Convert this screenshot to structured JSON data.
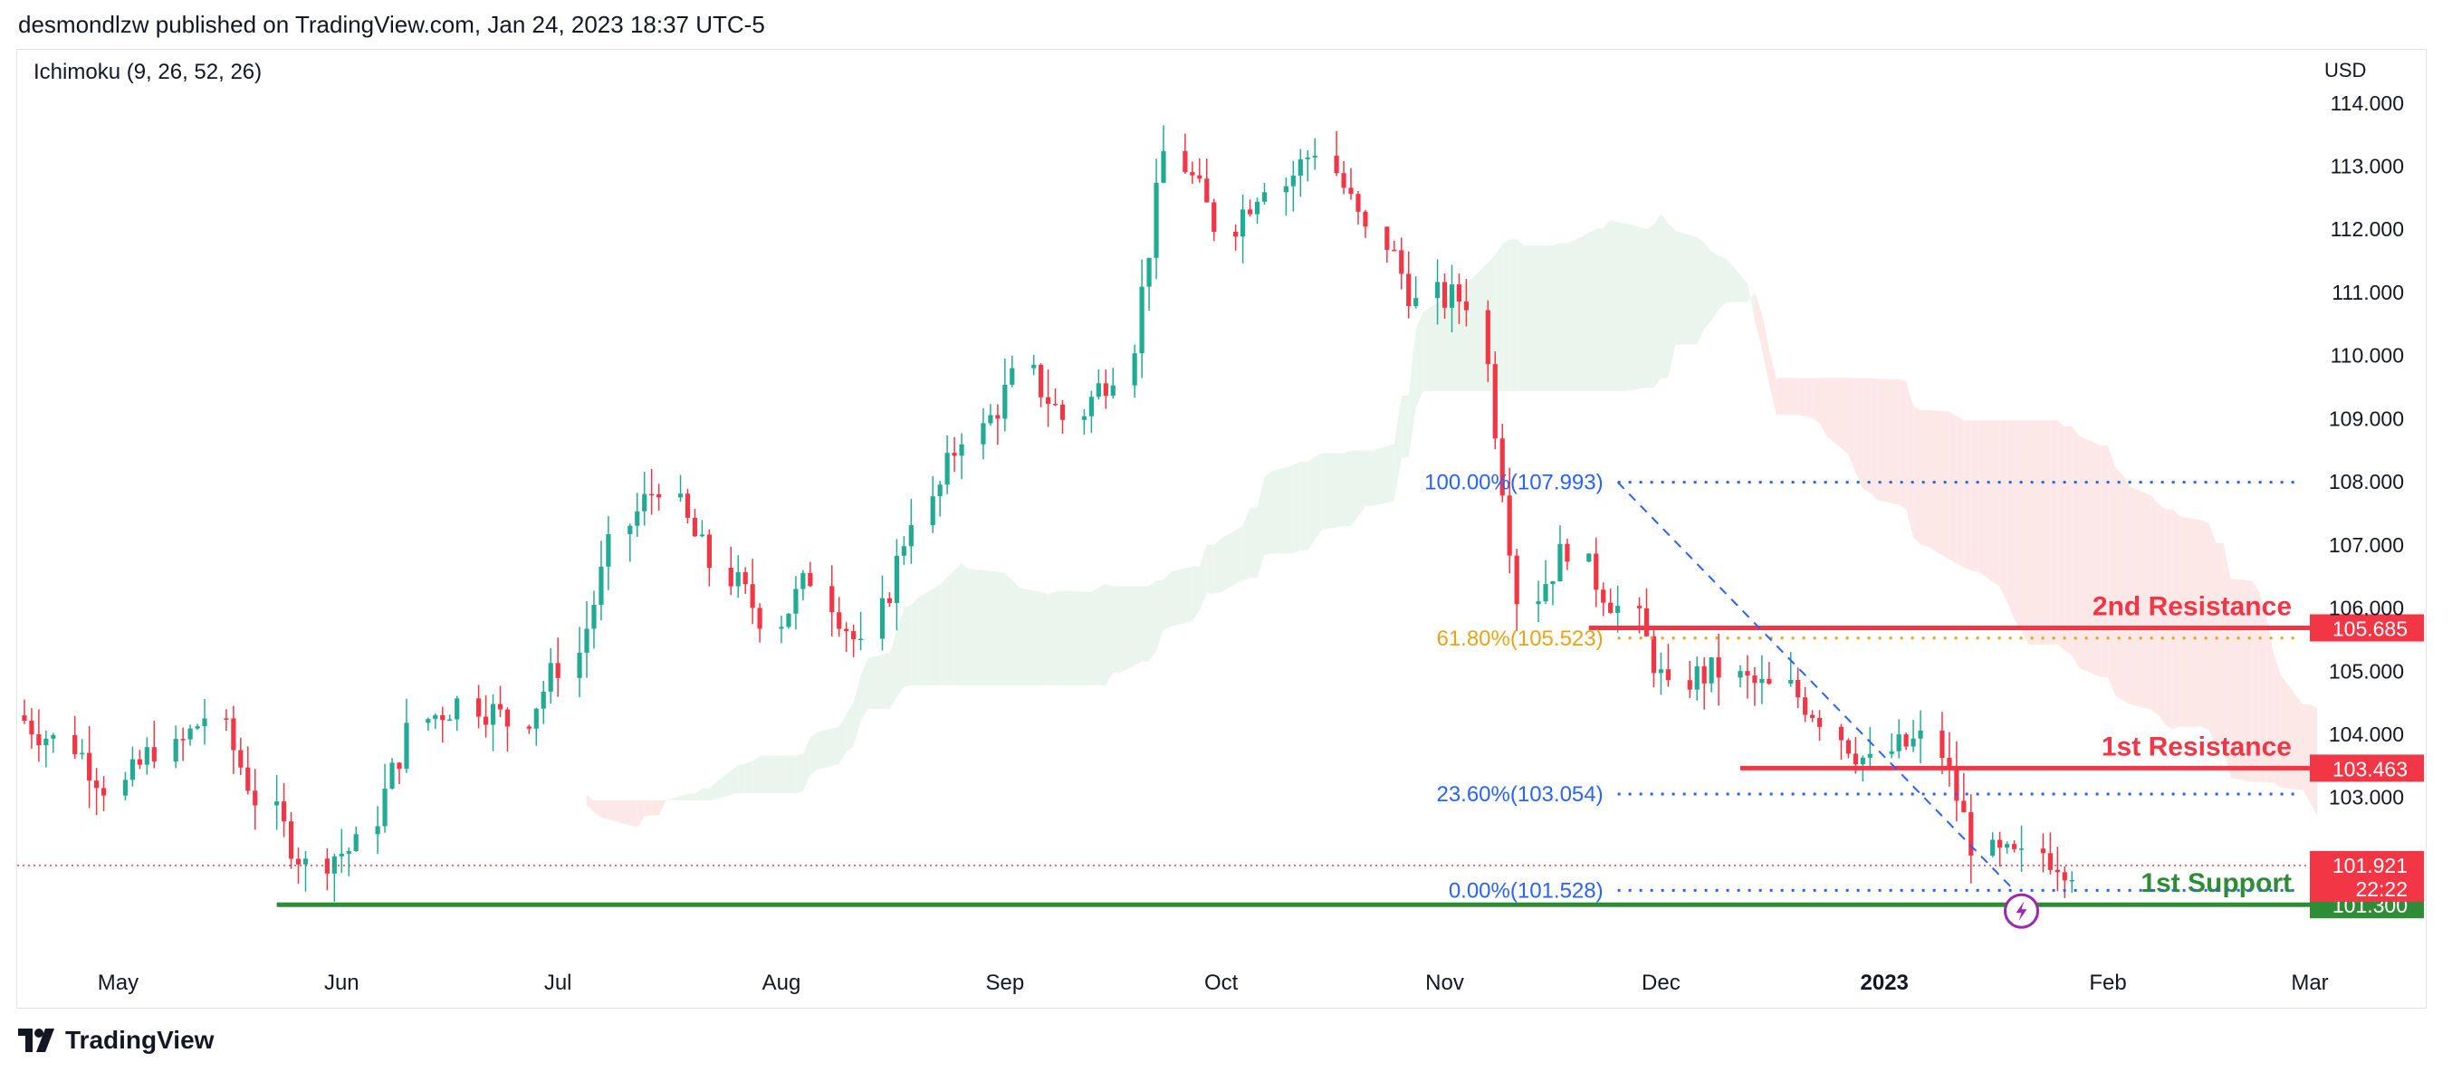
{
  "header": {
    "published": "desmondlzw published on TradingView.com, Jan 24, 2023 18:37 UTC-5"
  },
  "footer": {
    "brand": "TradingView",
    "logo_icon": "tradingview-logo-icon"
  },
  "colors": {
    "up": "#22ab94",
    "down": "#f23645",
    "cloud_bull": "#e6f4ea",
    "cloud_bear": "#fde4e4",
    "fib_blue": "#2962ff",
    "fib_gold": "#e8a317",
    "support": "#2e8b36",
    "resistance": "#f23645"
  },
  "chart_data": {
    "type": "candlestick",
    "title": "",
    "indicator_label": "Ichimoku (9, 26, 52, 26)",
    "currency_label": "USD",
    "x_axis": {
      "tick_labels": [
        "May",
        "Jun",
        "Jul",
        "Aug",
        "Sep",
        "Oct",
        "Nov",
        "Dec",
        "2023",
        "Feb",
        "Mar"
      ],
      "bold_labels": [
        "2023"
      ],
      "range": [
        "2022-04-17",
        "2023-03-01"
      ]
    },
    "y_axis": {
      "tick_labels": [
        "114.000",
        "113.000",
        "112.000",
        "111.000",
        "110.000",
        "109.000",
        "108.000",
        "107.000",
        "106.000",
        "105.000",
        "104.000",
        "103.000"
      ],
      "range": [
        100.5,
        114.7
      ],
      "position": "right"
    },
    "weekly_closes": [
      {
        "date": "2022-04-18",
        "close": 103.9
      },
      {
        "date": "2022-04-25",
        "close": 103.2
      },
      {
        "date": "2022-05-02",
        "close": 103.8
      },
      {
        "date": "2022-05-09",
        "close": 104.3
      },
      {
        "date": "2022-05-16",
        "close": 103.0
      },
      {
        "date": "2022-05-23",
        "close": 101.9
      },
      {
        "date": "2022-05-30",
        "close": 102.2
      },
      {
        "date": "2022-06-06",
        "close": 104.0
      },
      {
        "date": "2022-06-13",
        "close": 104.5
      },
      {
        "date": "2022-06-20",
        "close": 104.2
      },
      {
        "date": "2022-06-27",
        "close": 105.1
      },
      {
        "date": "2022-07-04",
        "close": 106.9
      },
      {
        "date": "2022-07-11",
        "close": 108.0
      },
      {
        "date": "2022-07-18",
        "close": 106.7
      },
      {
        "date": "2022-07-25",
        "close": 105.9
      },
      {
        "date": "2022-08-01",
        "close": 106.5
      },
      {
        "date": "2022-08-08",
        "close": 105.3
      },
      {
        "date": "2022-08-15",
        "close": 107.5
      },
      {
        "date": "2022-08-22",
        "close": 108.8
      },
      {
        "date": "2022-08-29",
        "close": 109.6
      },
      {
        "date": "2022-09-05",
        "close": 109.0
      },
      {
        "date": "2022-09-12",
        "close": 109.8
      },
      {
        "date": "2022-09-19",
        "close": 113.2
      },
      {
        "date": "2022-09-26",
        "close": 112.1
      },
      {
        "date": "2022-10-03",
        "close": 112.8
      },
      {
        "date": "2022-10-10",
        "close": 113.3
      },
      {
        "date": "2022-10-17",
        "close": 111.9
      },
      {
        "date": "2022-10-24",
        "close": 110.8
      },
      {
        "date": "2022-10-31",
        "close": 110.9
      },
      {
        "date": "2022-11-07",
        "close": 106.2
      },
      {
        "date": "2022-11-14",
        "close": 107.0
      },
      {
        "date": "2022-11-21",
        "close": 106.0
      },
      {
        "date": "2022-11-28",
        "close": 104.6
      },
      {
        "date": "2022-12-05",
        "close": 105.0
      },
      {
        "date": "2022-12-12",
        "close": 104.7
      },
      {
        "date": "2022-12-19",
        "close": 104.3
      },
      {
        "date": "2022-12-26",
        "close": 103.5
      },
      {
        "date": "2023-01-02",
        "close": 103.9
      },
      {
        "date": "2023-01-09",
        "close": 102.3
      },
      {
        "date": "2023-01-16",
        "close": 102.0
      },
      {
        "date": "2023-01-23",
        "close": 101.9
      }
    ],
    "levels": [
      {
        "name": "2nd Resistance",
        "value": 105.685,
        "label": "105.685",
        "color": "#f23645"
      },
      {
        "name": "1st Resistance",
        "value": 103.463,
        "label": "103.463",
        "color": "#f23645"
      },
      {
        "name": "1st Support",
        "value": 101.3,
        "label": "101.300",
        "color": "#2e8b36"
      }
    ],
    "fibonacci": [
      {
        "label": "100.00%(107.993)",
        "value": 107.993,
        "color": "#2962ff"
      },
      {
        "label": "61.80%(105.523)",
        "value": 105.523,
        "color": "#e8a317"
      },
      {
        "label": "23.60%(103.054)",
        "value": 103.054,
        "color": "#2962ff"
      },
      {
        "label": "0.00%(101.528)",
        "value": 101.528,
        "color": "#2962ff"
      }
    ],
    "last_price": {
      "value": 101.921,
      "label": "101.921",
      "countdown": "22:22"
    },
    "annotation_icon": "lightning-icon"
  }
}
